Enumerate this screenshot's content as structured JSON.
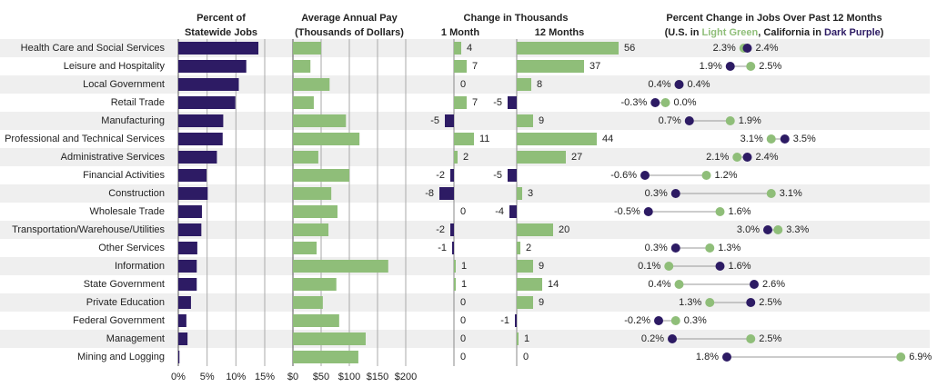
{
  "chart_data": [
    {
      "type": "hbar",
      "title": [
        "Percent of",
        "Statewide Jobs"
      ],
      "categories": [
        "Health Care and Social Services",
        "Leisure and Hospitality",
        "Local Government",
        "Retail Trade",
        "Manufacturing",
        "Professional and Technical Services",
        "Administrative Services",
        "Financial Activities",
        "Construction",
        "Wholesale Trade",
        "Transportation/Warehouse/Utilities",
        "Other Services",
        "Information",
        "State Government",
        "Private Education",
        "Federal Government",
        "Management",
        "Mining and Logging"
      ],
      "values": [
        13.9,
        11.8,
        10.5,
        9.9,
        7.8,
        7.7,
        6.7,
        4.9,
        5.1,
        4.1,
        4.0,
        3.3,
        3.2,
        3.2,
        2.2,
        1.4,
        1.6,
        0.2
      ],
      "color": "#2d1b64",
      "xlim": [
        0,
        15
      ],
      "xticks": [
        {
          "value": 0,
          "label": "0%"
        },
        {
          "value": 5,
          "label": "5%"
        },
        {
          "value": 10,
          "label": "10%"
        },
        {
          "value": 15,
          "label": "15%"
        }
      ],
      "grid": true
    },
    {
      "type": "hbar",
      "title": [
        "Average Annual Pay",
        "(Thousands of Dollars)"
      ],
      "values": [
        50,
        31,
        65,
        37,
        94,
        118,
        45,
        100,
        68,
        79,
        63,
        42,
        169,
        77,
        53,
        82,
        129,
        116
      ],
      "color": "#8fbe79",
      "xlim": [
        0,
        200
      ],
      "xticks": [
        {
          "value": 0,
          "label": "$0"
        },
        {
          "value": 50,
          "label": "$50"
        },
        {
          "value": 100,
          "label": "$100"
        },
        {
          "value": 150,
          "label": "$150"
        },
        {
          "value": 200,
          "label": "$200"
        }
      ],
      "grid": true
    },
    {
      "type": "change",
      "title": [
        "Change in Thousands"
      ],
      "series": [
        {
          "name": "1 Month",
          "color": "#8fbe79",
          "negative_color": "#2d1b64",
          "xlim": [
            -15,
            30
          ],
          "values": [
            4,
            7,
            0,
            7,
            -5,
            11,
            2,
            -2,
            -8,
            0,
            -2,
            -1,
            1,
            1,
            0,
            0,
            0,
            0
          ]
        },
        {
          "name": "12 Months",
          "color": "#8fbe79",
          "negative_color": "#2d1b64",
          "xlim": [
            -10,
            60
          ],
          "values": [
            56,
            37,
            8,
            -5,
            9,
            44,
            27,
            -5,
            3,
            -4,
            20,
            2,
            9,
            14,
            9,
            -1,
            1,
            0
          ]
        }
      ]
    },
    {
      "type": "dumbbell",
      "title": [
        "Percent Change in Jobs Over Past 12 Months"
      ],
      "subtitle": [
        "(U.S. in ",
        "Light Green",
        ", California in ",
        "Dark Purple",
        ")"
      ],
      "xlim": [
        -1,
        7
      ],
      "series": [
        {
          "color": "#8fbe79",
          "values": [
            2.3,
            2.5,
            0.4,
            0.0,
            1.9,
            3.1,
            2.1,
            1.2,
            3.1,
            1.6,
            3.3,
            1.3,
            0.1,
            0.4,
            1.3,
            0.3,
            2.5,
            6.9
          ],
          "value_labels": [
            "2.3%",
            "2.5%",
            "0.4%",
            "0.0%",
            "1.9%",
            "3.1%",
            "2.1%",
            "1.2%",
            "3.1%",
            "1.6%",
            "3.3%",
            "1.3%",
            "0.1%",
            "0.4%",
            "1.3%",
            "0.3%",
            "2.5%",
            "6.9%"
          ]
        },
        {
          "color": "#2d1b64",
          "values": [
            2.4,
            1.9,
            0.4,
            -0.3,
            0.7,
            3.5,
            2.4,
            -0.6,
            0.3,
            -0.5,
            3.0,
            0.3,
            1.6,
            2.6,
            2.5,
            -0.2,
            0.2,
            1.8
          ],
          "value_labels": [
            "2.4%",
            "1.9%",
            "0.4%",
            "-0.3%",
            "0.7%",
            "3.5%",
            "2.4%",
            "-0.6%",
            "0.3%",
            "-0.5%",
            "3.0%",
            "0.3%",
            "1.6%",
            "2.6%",
            "2.5%",
            "-0.2%",
            "0.2%",
            "1.8%"
          ]
        }
      ]
    }
  ]
}
